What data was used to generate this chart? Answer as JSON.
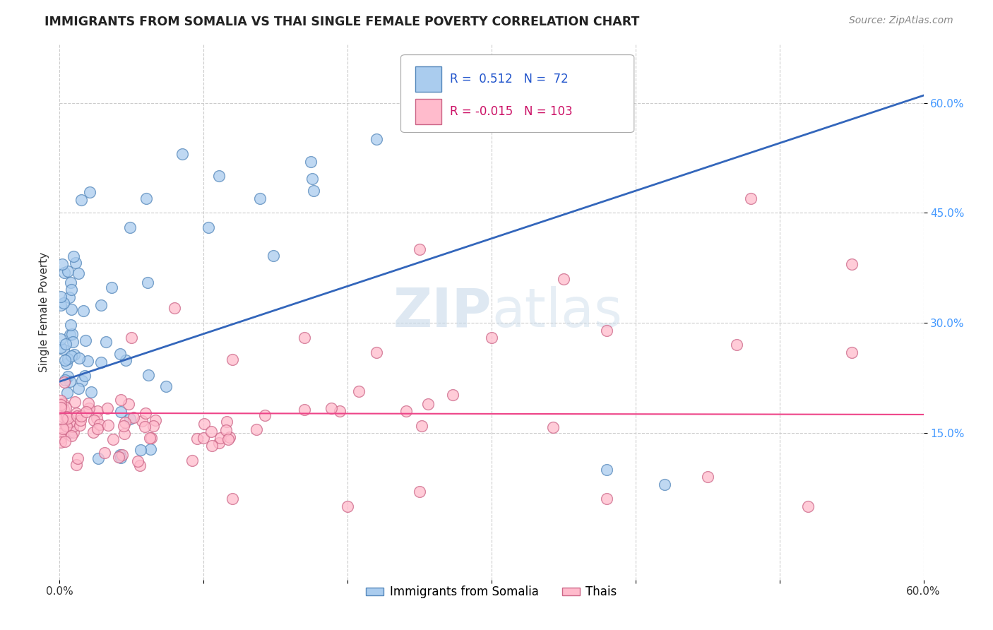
{
  "title": "IMMIGRANTS FROM SOMALIA VS THAI SINGLE FEMALE POVERTY CORRELATION CHART",
  "source": "Source: ZipAtlas.com",
  "ylabel": "Single Female Poverty",
  "xlim": [
    0.0,
    0.6
  ],
  "ylim": [
    -0.05,
    0.68
  ],
  "x_ticks": [
    0.0,
    0.1,
    0.2,
    0.3,
    0.4,
    0.5,
    0.6
  ],
  "x_tick_labels": [
    "0.0%",
    "",
    "",
    "",
    "",
    "",
    "60.0%"
  ],
  "y_ticks": [
    0.15,
    0.3,
    0.45,
    0.6
  ],
  "y_tick_labels": [
    "15.0%",
    "30.0%",
    "45.0%",
    "60.0%"
  ],
  "legend_R1": "0.512",
  "legend_N1": "72",
  "legend_R2": "-0.015",
  "legend_N2": "103",
  "legend_label1": "Immigrants from Somalia",
  "legend_label2": "Thais",
  "blue_face_color": "#aaccee",
  "blue_edge_color": "#5588bb",
  "pink_face_color": "#ffbbcc",
  "pink_edge_color": "#cc6688",
  "blue_line_color": "#3366bb",
  "pink_line_color": "#ee4488",
  "watermark_color": "#c8daea",
  "background_color": "#ffffff",
  "grid_color": "#cccccc",
  "title_color": "#222222",
  "source_color": "#888888",
  "ytick_color": "#4499ff",
  "legend_text_color": "#333333"
}
